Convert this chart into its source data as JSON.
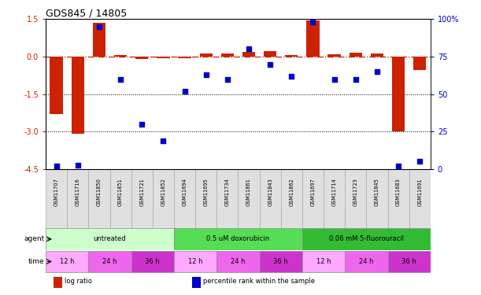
{
  "title": "GDS845 / 14805",
  "samples": [
    "GSM11707",
    "GSM11716",
    "GSM11850",
    "GSM11851",
    "GSM11721",
    "GSM11852",
    "GSM11694",
    "GSM11695",
    "GSM11734",
    "GSM11861",
    "GSM11843",
    "GSM11862",
    "GSM11697",
    "GSM11714",
    "GSM11723",
    "GSM11845",
    "GSM11683",
    "GSM11691"
  ],
  "log_ratio": [
    -2.3,
    -3.1,
    1.35,
    0.07,
    -0.08,
    -0.05,
    -0.05,
    0.12,
    0.12,
    0.2,
    0.22,
    0.07,
    1.45,
    0.1,
    0.15,
    0.12,
    -3.0,
    -0.55
  ],
  "percentile_rank": [
    2.0,
    2.5,
    95.0,
    60.0,
    30.0,
    19.0,
    52.0,
    63.0,
    60.0,
    80.0,
    70.0,
    62.0,
    98.0,
    60.0,
    60.0,
    65.0,
    2.0,
    5.0
  ],
  "bar_color": "#cc2200",
  "dot_color": "#0000cc",
  "dashed_line_color": "#cc2200",
  "ylim_left": [
    -4.5,
    1.5
  ],
  "ylim_right": [
    0,
    100
  ],
  "yticks_left": [
    1.5,
    0.0,
    -1.5,
    -3.0,
    -4.5
  ],
  "yticks_right": [
    100,
    75,
    50,
    25,
    0
  ],
  "hline_positions": [
    -1.5,
    -3.0
  ],
  "agent_groups": [
    {
      "label": "untreated",
      "start": 0,
      "end": 6,
      "color": "#ccffcc"
    },
    {
      "label": "0.5 uM doxorubicin",
      "start": 6,
      "end": 12,
      "color": "#55dd55"
    },
    {
      "label": "0.06 mM 5-fluorouracil",
      "start": 12,
      "end": 18,
      "color": "#33bb33"
    }
  ],
  "time_groups": [
    {
      "label": "12 h",
      "start": 0,
      "end": 2,
      "color": "#ffaaff"
    },
    {
      "label": "24 h",
      "start": 2,
      "end": 4,
      "color": "#ee66ee"
    },
    {
      "label": "36 h",
      "start": 4,
      "end": 6,
      "color": "#cc33cc"
    },
    {
      "label": "12 h",
      "start": 6,
      "end": 8,
      "color": "#ffaaff"
    },
    {
      "label": "24 h",
      "start": 8,
      "end": 10,
      "color": "#ee66ee"
    },
    {
      "label": "36 h",
      "start": 10,
      "end": 12,
      "color": "#cc33cc"
    },
    {
      "label": "12 h",
      "start": 12,
      "end": 14,
      "color": "#ffaaff"
    },
    {
      "label": "24 h",
      "start": 14,
      "end": 16,
      "color": "#ee66ee"
    },
    {
      "label": "36 h",
      "start": 16,
      "end": 18,
      "color": "#cc33cc"
    }
  ],
  "legend_items": [
    {
      "label": "log ratio",
      "color": "#cc2200"
    },
    {
      "label": "percentile rank within the sample",
      "color": "#0000cc"
    }
  ],
  "axis_label_color_left": "#cc2200",
  "axis_label_color_right": "#0000cc",
  "bg_color": "#ffffff"
}
